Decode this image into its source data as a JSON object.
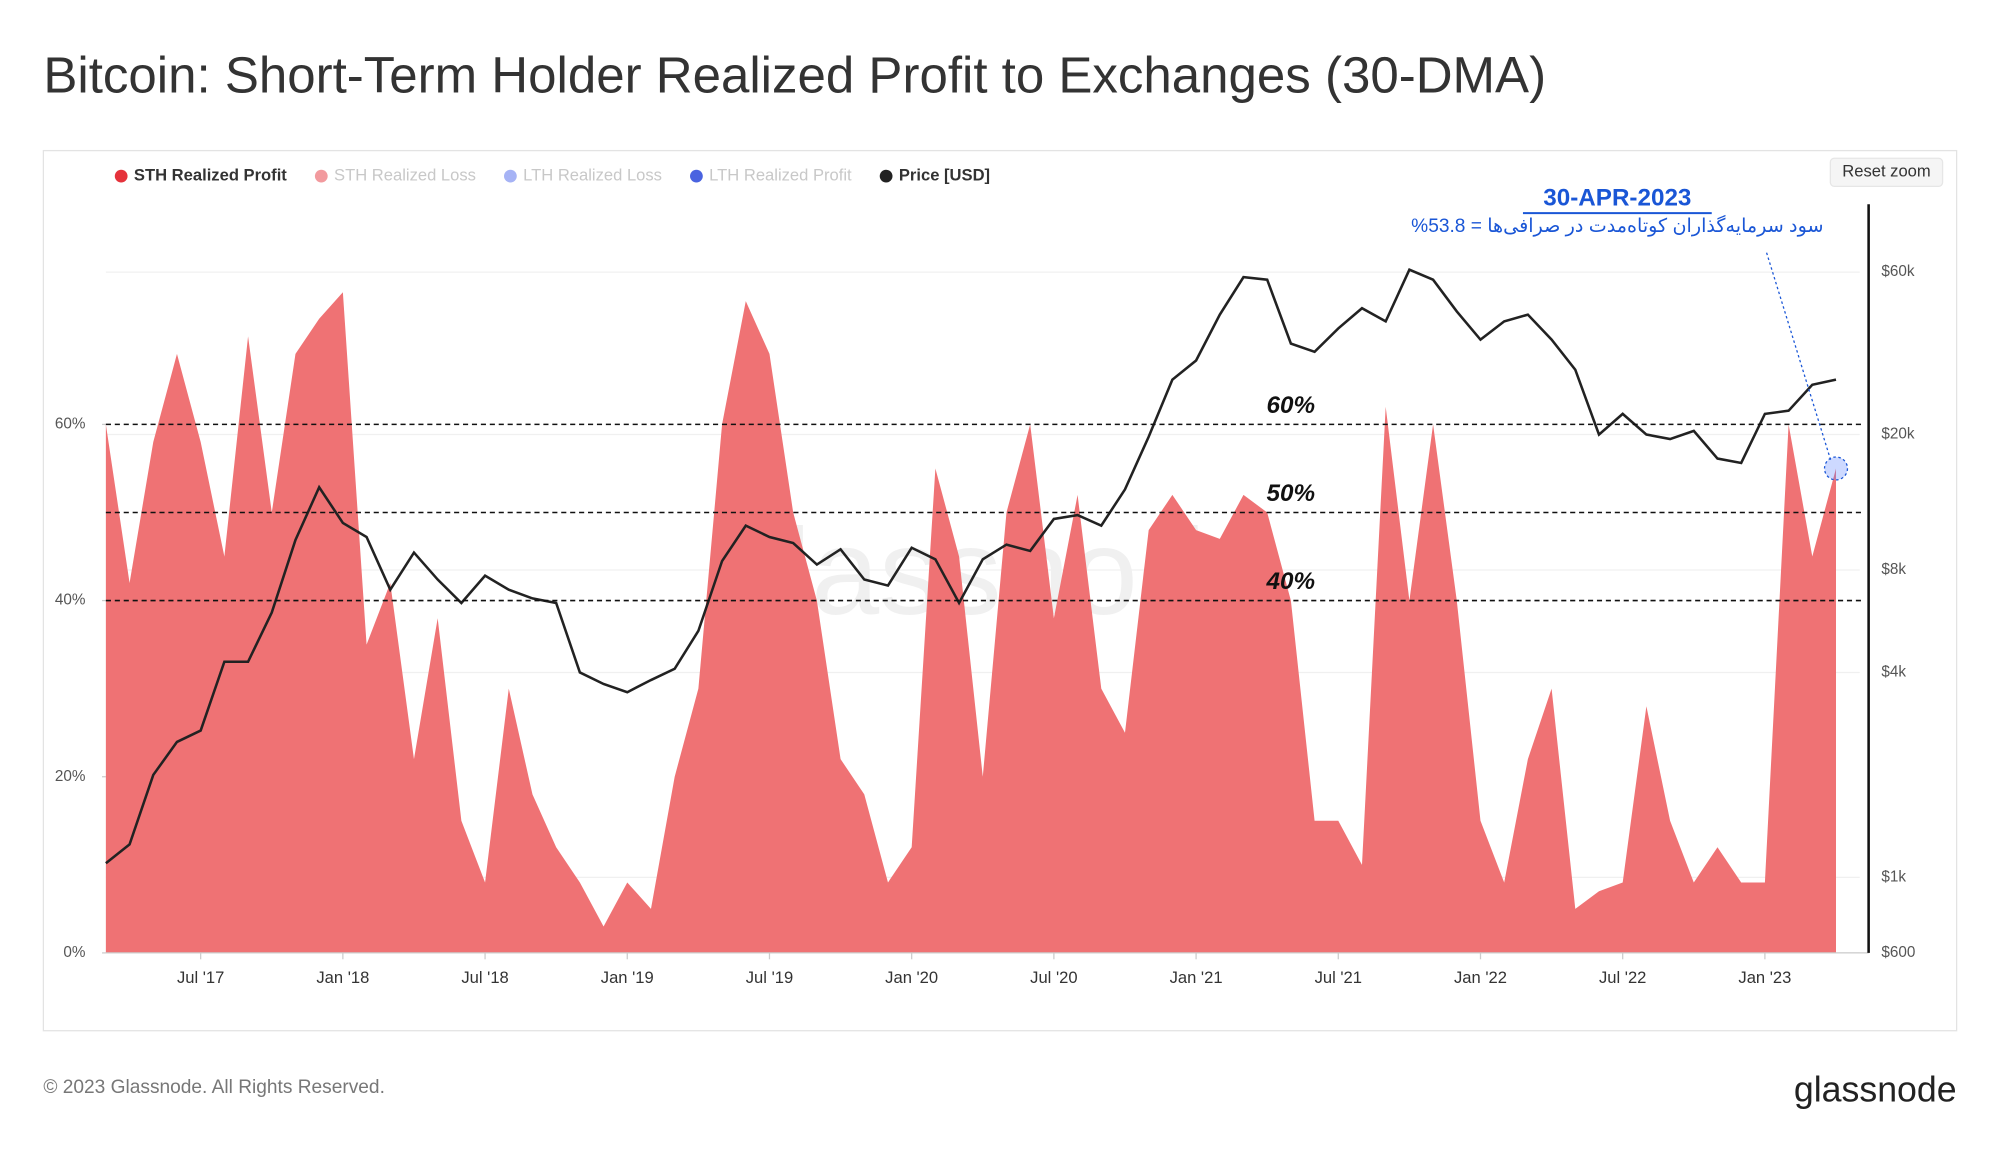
{
  "chart_data": {
    "type": "area",
    "title": "Bitcoin: Short-Term Holder Realized Profit to Exchanges (30-DMA)",
    "x": [
      "2017-03",
      "2017-04",
      "2017-05",
      "2017-06",
      "2017-07",
      "2017-08",
      "2017-09",
      "2017-10",
      "2017-11",
      "2017-12",
      "2018-01",
      "2018-02",
      "2018-03",
      "2018-04",
      "2018-05",
      "2018-06",
      "2018-07",
      "2018-08",
      "2018-09",
      "2018-10",
      "2018-11",
      "2018-12",
      "2019-01",
      "2019-02",
      "2019-03",
      "2019-04",
      "2019-05",
      "2019-06",
      "2019-07",
      "2019-08",
      "2019-09",
      "2019-10",
      "2019-11",
      "2019-12",
      "2020-01",
      "2020-02",
      "2020-03",
      "2020-04",
      "2020-05",
      "2020-06",
      "2020-07",
      "2020-08",
      "2020-09",
      "2020-10",
      "2020-11",
      "2020-12",
      "2021-01",
      "2021-02",
      "2021-03",
      "2021-04",
      "2021-05",
      "2021-06",
      "2021-07",
      "2021-08",
      "2021-09",
      "2021-10",
      "2021-11",
      "2021-12",
      "2022-01",
      "2022-02",
      "2022-03",
      "2022-04",
      "2022-05",
      "2022-06",
      "2022-07",
      "2022-08",
      "2022-09",
      "2022-10",
      "2022-11",
      "2022-12",
      "2023-01",
      "2023-02",
      "2023-03",
      "2023-04"
    ],
    "xlim": [
      "2017-03",
      "2023-05"
    ],
    "xticks": [
      {
        "value": "2017-07",
        "label": "Jul '17"
      },
      {
        "value": "2018-01",
        "label": "Jan '18"
      },
      {
        "value": "2018-07",
        "label": "Jul '18"
      },
      {
        "value": "2019-01",
        "label": "Jan '19"
      },
      {
        "value": "2019-07",
        "label": "Jul '19"
      },
      {
        "value": "2020-01",
        "label": "Jan '20"
      },
      {
        "value": "2020-07",
        "label": "Jul '20"
      },
      {
        "value": "2021-01",
        "label": "Jan '21"
      },
      {
        "value": "2021-07",
        "label": "Jul '21"
      },
      {
        "value": "2022-01",
        "label": "Jan '22"
      },
      {
        "value": "2022-07",
        "label": "Jul '22"
      },
      {
        "value": "2023-01",
        "label": "Jan '23"
      }
    ],
    "ylim": [
      0,
      85
    ],
    "yticks": [
      {
        "value": 0,
        "label": "0%"
      },
      {
        "value": 20,
        "label": "20%"
      },
      {
        "value": 40,
        "label": "40%"
      },
      {
        "value": 60,
        "label": "60%"
      }
    ],
    "y2lim": [
      600,
      95000
    ],
    "y2log": true,
    "y2ticks": [
      {
        "value": 600,
        "label": "$600"
      },
      {
        "value": 1000,
        "label": "$1k"
      },
      {
        "value": 4000,
        "label": "$4k"
      },
      {
        "value": 8000,
        "label": "$8k"
      },
      {
        "value": 20000,
        "label": "$20k"
      },
      {
        "value": 60000,
        "label": "$60k"
      }
    ],
    "series": [
      {
        "name": "STH Realized Profit",
        "color": "#e5323b",
        "fill": "#ef7274",
        "visible": true,
        "values": [
          60,
          42,
          58,
          68,
          58,
          45,
          70,
          50,
          68,
          72,
          75,
          35,
          42,
          22,
          38,
          15,
          8,
          30,
          18,
          12,
          8,
          3,
          8,
          5,
          20,
          30,
          60,
          74,
          68,
          50,
          40,
          22,
          18,
          8,
          12,
          55,
          45,
          20,
          50,
          60,
          38,
          52,
          30,
          25,
          48,
          52,
          48,
          47,
          52,
          50,
          40,
          15,
          15,
          10,
          62,
          40,
          60,
          40,
          15,
          8,
          22,
          30,
          5,
          7,
          8,
          28,
          15,
          8,
          12,
          8,
          8,
          60,
          45,
          55
        ]
      },
      {
        "name": "STH Realized Loss",
        "color": "#f29a9e",
        "visible": false
      },
      {
        "name": "LTH Realized Loss",
        "color": "#a6b3f5",
        "visible": false
      },
      {
        "name": "LTH Realized Profit",
        "color": "#4a63e0",
        "visible": false
      },
      {
        "name": "Price [USD]",
        "color": "#222222",
        "visible": true,
        "axis": "y2",
        "values": [
          1100,
          1250,
          2000,
          2500,
          2700,
          4300,
          4300,
          6000,
          9800,
          14000,
          11000,
          10000,
          7000,
          9000,
          7500,
          6400,
          7700,
          7000,
          6600,
          6400,
          4000,
          3700,
          3500,
          3800,
          4100,
          5300,
          8500,
          10800,
          10000,
          9600,
          8300,
          9200,
          7500,
          7200,
          9300,
          8600,
          6400,
          8600,
          9500,
          9100,
          11300,
          11600,
          10800,
          13800,
          19700,
          29000,
          33000,
          45000,
          58000,
          57000,
          37000,
          35000,
          41000,
          47000,
          43000,
          61000,
          57000,
          46000,
          38000,
          43000,
          45000,
          38000,
          31000,
          20000,
          23000,
          20000,
          19400,
          20500,
          17000,
          16500,
          23000,
          23500,
          28000,
          29000
        ]
      }
    ],
    "reference_lines": [
      {
        "value": 60,
        "label": "60%"
      },
      {
        "value": 50,
        "label": "50%"
      },
      {
        "value": 40,
        "label": "40%"
      }
    ],
    "annotation": {
      "date": "30-APR-2023",
      "text": "سود سرمایه‌گذاران کوتاه‌مدت در صرافی‌ها = 53.8%"
    },
    "reset_button": "Reset zoom",
    "watermark": "glassnode",
    "footer": "© 2023 Glassnode. All Rights Reserved.",
    "logo": "glassnode"
  }
}
